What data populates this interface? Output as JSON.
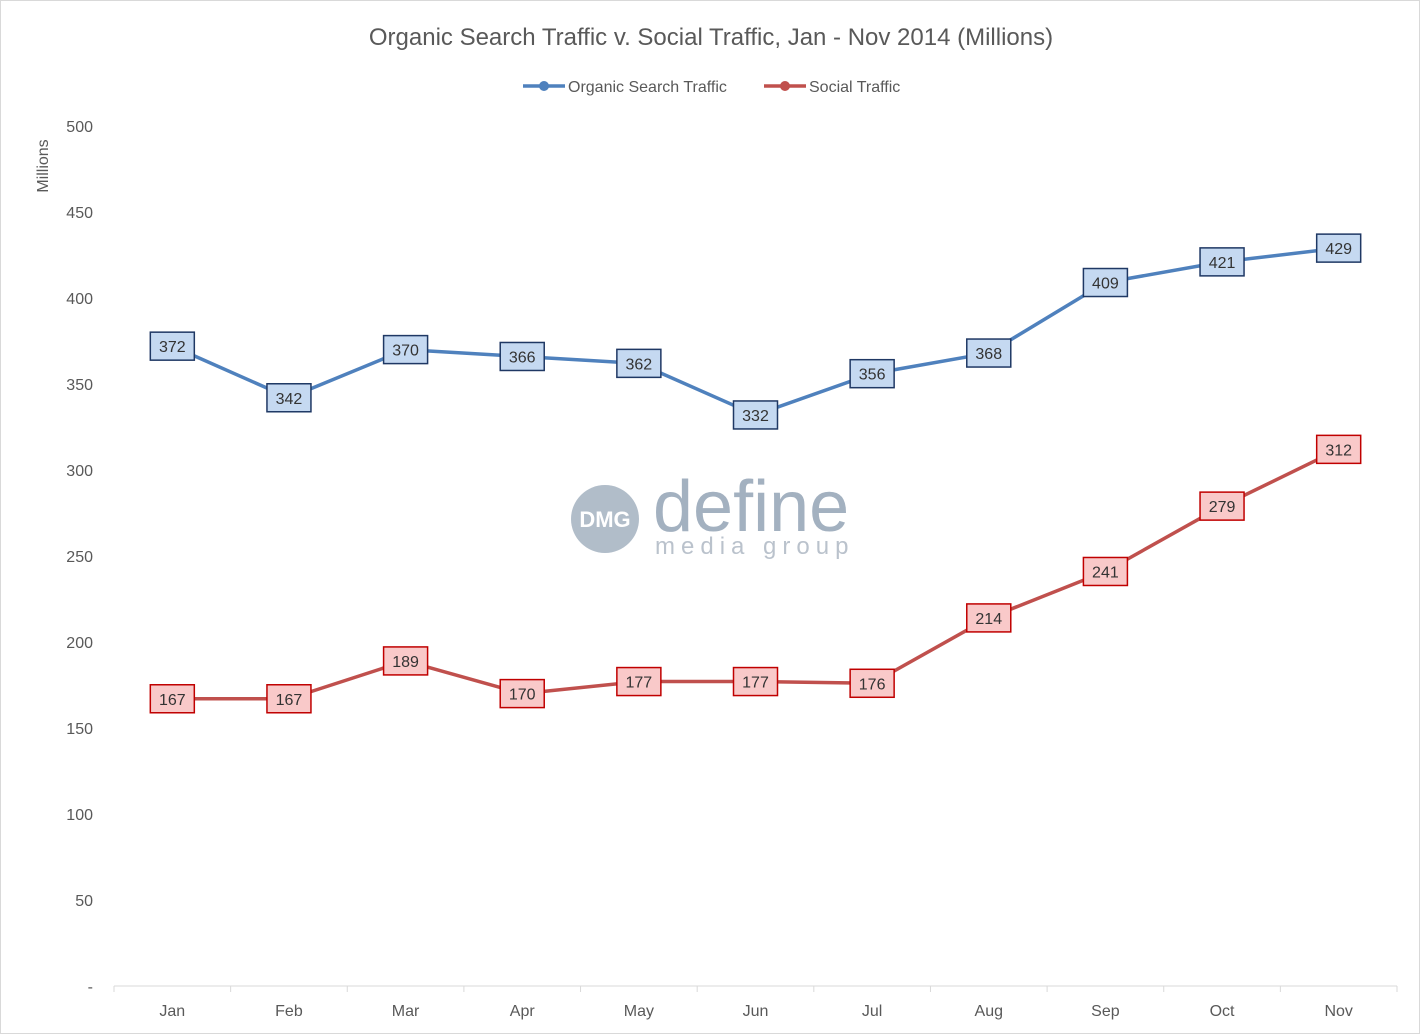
{
  "chart_data": {
    "type": "line",
    "title": "Organic Search Traffic v. Social Traffic, Jan - Nov 2014 (Millions)",
    "ylabel": "Millions",
    "xlabel": "",
    "categories": [
      "Jan",
      "Feb",
      "Mar",
      "Apr",
      "May",
      "Jun",
      "Jul",
      "Aug",
      "Sep",
      "Oct",
      "Nov"
    ],
    "ylim": [
      0,
      500
    ],
    "yticks": [
      0,
      50,
      100,
      150,
      200,
      250,
      300,
      350,
      400,
      450,
      500
    ],
    "ytick_labels": [
      "-",
      "50",
      "100",
      "150",
      "200",
      "250",
      "300",
      "350",
      "400",
      "450",
      "500"
    ],
    "grid": false,
    "legend_position": "top-center",
    "series": [
      {
        "name": "Organic Search Traffic",
        "color": "#4f81bd",
        "label_fill": "#c5d9f1",
        "label_border": "#1f3864",
        "values": [
          372,
          342,
          370,
          366,
          362,
          332,
          356,
          368,
          409,
          421,
          429
        ]
      },
      {
        "name": "Social Traffic",
        "color": "#c0504d",
        "label_fill": "#f9c9c9",
        "label_border": "#c00000",
        "values": [
          167,
          167,
          189,
          170,
          177,
          177,
          176,
          214,
          241,
          279,
          312
        ]
      }
    ]
  },
  "watermark": {
    "logo_letters": "DMG",
    "word": "define",
    "subtitle": "media group"
  }
}
